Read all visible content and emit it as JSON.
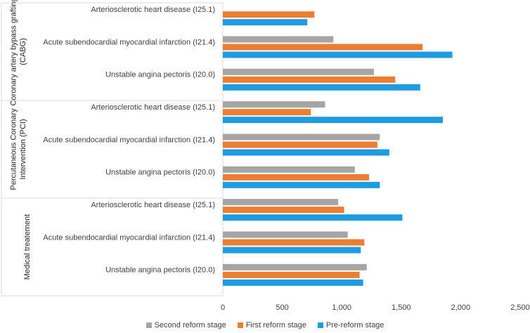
{
  "chart_data": {
    "type": "bar",
    "orientation": "horizontal",
    "groups": [
      {
        "name": "Coronary artery bypass grafting (CABG)",
        "categories": [
          "Arteriosclerotic heart disease (I25.1)",
          "Acute subendocardial myocardial infarction (I21.4)",
          "Unstable angina pectoris (I20.0)"
        ]
      },
      {
        "name": "Percutaneous Coronary Intervention (PCI)",
        "categories": [
          "Arteriosclerotic heart disease (I25.1)",
          "Acute subendocardial myocardial infarction (I21.4)",
          "Unstable angina pectoris (I20.0)"
        ]
      },
      {
        "name": "Medical treatement",
        "categories": [
          "Arteriosclerotic heart disease (I25.1)",
          "Acute subendocardial myocardial infarction (I21.4)",
          "Unstable angina pectoris (I20.0)"
        ]
      }
    ],
    "series": [
      {
        "name": "Second reform stage",
        "color": "#a5a5a5",
        "values": [
          null,
          930,
          1270,
          860,
          1320,
          1110,
          970,
          1050,
          1210
        ]
      },
      {
        "name": "First reform stage",
        "color": "#ed7d31",
        "values": [
          770,
          1680,
          1450,
          740,
          1300,
          1230,
          1020,
          1190,
          1150
        ]
      },
      {
        "name": "Pre-reform stage",
        "color": "#1f9be0",
        "values": [
          710,
          1930,
          1660,
          1850,
          1400,
          1320,
          1510,
          1160,
          1180
        ]
      }
    ],
    "xlim": [
      0,
      2500
    ],
    "xticks": [
      "0",
      "500",
      "1,000",
      "1,500",
      "2,000",
      "2,500"
    ],
    "legend_position": "bottom"
  }
}
